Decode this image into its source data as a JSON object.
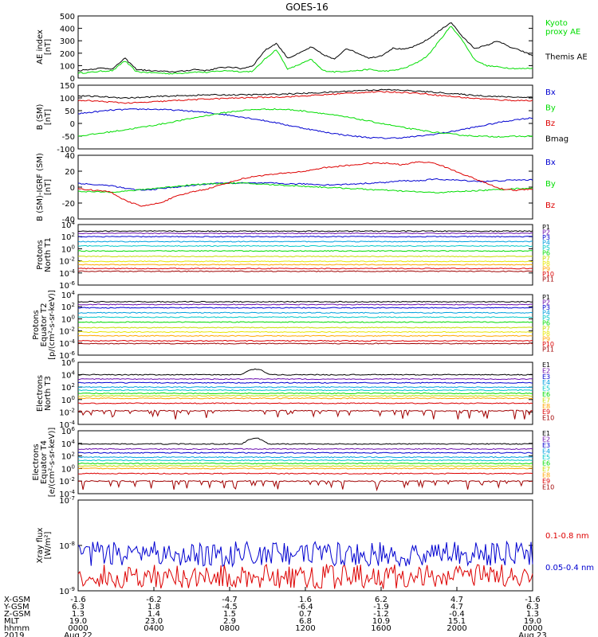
{
  "title": "GOES-16",
  "colors": {
    "black": "#000000",
    "blue": "#0000d0",
    "green": "#00dd00",
    "red": "#dd0000",
    "navy": "#1a1aa8",
    "darkred": "#a00000"
  },
  "chart_data": [
    {
      "type": "line",
      "ylabel": [
        "AE index",
        "[nT]"
      ],
      "ylim": [
        0,
        500
      ],
      "yticks": [
        "500",
        "400",
        "300",
        "200",
        "100",
        "0"
      ],
      "series": [
        {
          "name": "Kyoto proxy AE",
          "label_lines": [
            "Kyoto",
            "proxy AE"
          ],
          "color": "#00dd00",
          "values": [
            40,
            45,
            55,
            60,
            140,
            50,
            45,
            40,
            35,
            40,
            50,
            45,
            55,
            60,
            50,
            55,
            150,
            230,
            70,
            110,
            150,
            60,
            50,
            55,
            60,
            70,
            55,
            60,
            80,
            120,
            180,
            300,
            420,
            300,
            150,
            100,
            90,
            80,
            75,
            80
          ]
        },
        {
          "name": "Themis AE",
          "label_lines": [
            "Themis AE"
          ],
          "color": "#000000",
          "values": [
            60,
            70,
            80,
            75,
            160,
            70,
            60,
            55,
            50,
            55,
            70,
            60,
            80,
            90,
            75,
            100,
            220,
            280,
            160,
            200,
            250,
            190,
            150,
            240,
            200,
            160,
            180,
            240,
            230,
            260,
            310,
            380,
            450,
            330,
            240,
            260,
            300,
            250,
            220,
            180
          ]
        }
      ]
    },
    {
      "type": "line",
      "ylabel": [
        "B (SM)",
        "[nT]"
      ],
      "ylim": [
        -100,
        150
      ],
      "yticks": [
        "150",
        "100",
        "50",
        "0",
        "-50",
        "-100"
      ],
      "series": [
        {
          "name": "Bx",
          "color": "#0000d0",
          "values": [
            38,
            45,
            52,
            55,
            56,
            55,
            52,
            48,
            42,
            35,
            26,
            16,
            5,
            -8,
            -20,
            -32,
            -42,
            -50,
            -56,
            -58,
            -56,
            -50,
            -42,
            -32,
            -20,
            -8,
            5,
            15,
            22
          ]
        },
        {
          "name": "By",
          "color": "#00dd00",
          "values": [
            -50,
            -42,
            -33,
            -24,
            -14,
            -4,
            8,
            20,
            32,
            42,
            50,
            55,
            56,
            54,
            48,
            40,
            30,
            20,
            8,
            -4,
            -16,
            -26,
            -35,
            -42,
            -48,
            -51,
            -52,
            -51,
            -50
          ]
        },
        {
          "name": "Bz",
          "color": "#dd0000",
          "values": [
            90,
            88,
            84,
            80,
            82,
            86,
            90,
            93,
            96,
            98,
            100,
            102,
            103,
            105,
            108,
            112,
            116,
            120,
            123,
            124,
            122,
            118,
            112,
            106,
            100,
            96,
            92,
            90,
            90
          ]
        },
        {
          "name": "Bmag",
          "color": "#000000",
          "values": [
            108,
            106,
            103,
            100,
            102,
            106,
            108,
            110,
            112,
            112,
            112,
            113,
            114,
            116,
            118,
            121,
            124,
            128,
            131,
            132,
            130,
            126,
            122,
            117,
            112,
            108,
            105,
            103,
            103
          ]
        }
      ]
    },
    {
      "type": "line",
      "ylabel": [
        "B (SM)-IGRF (SM)",
        "[nT]"
      ],
      "ylim": [
        -40,
        40
      ],
      "yticks": [
        "40",
        "20",
        "0",
        "-20",
        "-40"
      ],
      "series": [
        {
          "name": "Bx",
          "color": "#0000d0",
          "values": [
            5,
            3,
            2,
            -2,
            -4,
            -2,
            0,
            2,
            4,
            5,
            5,
            5,
            5,
            4,
            4,
            3,
            3,
            4,
            5,
            6,
            8,
            8,
            10,
            9,
            8,
            7,
            8,
            9,
            9
          ]
        },
        {
          "name": "By",
          "color": "#00dd00",
          "values": [
            -5,
            -6,
            -6,
            -5,
            -3,
            -1,
            1,
            3,
            4,
            5,
            5,
            4,
            3,
            2,
            1,
            0,
            -1,
            -2,
            -3,
            -4,
            -5,
            -6,
            -7,
            -6,
            -5,
            -4,
            -3,
            -2,
            -1
          ]
        },
        {
          "name": "Bz",
          "color": "#dd0000",
          "values": [
            -2,
            -4,
            -6,
            -18,
            -24,
            -20,
            -12,
            -6,
            -2,
            4,
            10,
            14,
            16,
            18,
            20,
            24,
            26,
            28,
            30,
            30,
            28,
            32,
            30,
            22,
            14,
            6,
            -2,
            -4,
            -2
          ]
        }
      ]
    },
    {
      "type": "line",
      "ylabel": [
        "Protons",
        "North T1"
      ],
      "ylim": [
        -7,
        4
      ],
      "log": true,
      "yticks": [
        "10^4",
        "10^2",
        "10^0",
        "10^-2",
        "10^-4",
        "10^-6"
      ],
      "series": [
        {
          "name": "P1",
          "color": "#000000",
          "level": 2.8
        },
        {
          "name": "P2",
          "color": "#6a0dad",
          "level": 2.4
        },
        {
          "name": "P3",
          "color": "#0000d0",
          "level": 1.8
        },
        {
          "name": "P4",
          "color": "#00a0e0",
          "level": 0.9
        },
        {
          "name": "P5",
          "color": "#00c8c8",
          "level": 0.1
        },
        {
          "name": "P6",
          "color": "#00dd00",
          "level": -0.8
        },
        {
          "name": "P7",
          "color": "#c8dc00",
          "level": -1.8
        },
        {
          "name": "P8",
          "color": "#e6e600",
          "level": -2.7
        },
        {
          "name": "P9",
          "color": "#ffa500",
          "level": -3.3
        },
        {
          "name": "P10",
          "color": "#dd0000",
          "level": -4.0
        },
        {
          "name": "P11",
          "color": "#a00000",
          "level": -4.5
        }
      ]
    },
    {
      "type": "line",
      "ylabel": [
        "Protons",
        "Equator T2",
        "[p/(cm²-s-sr-keV)]"
      ],
      "ylim": [
        -7,
        4
      ],
      "log": true,
      "yticks": [
        "10^4",
        "10^2",
        "10^0",
        "10^-2",
        "10^-4",
        "10^-6"
      ],
      "series": [
        {
          "name": "P1",
          "color": "#000000",
          "level": 2.7
        },
        {
          "name": "P2",
          "color": "#6a0dad",
          "level": 2.2
        },
        {
          "name": "P3",
          "color": "#0000d0",
          "level": 1.6
        },
        {
          "name": "P4",
          "color": "#00a0e0",
          "level": 0.7
        },
        {
          "name": "P5",
          "color": "#00c8c8",
          "level": -0.1
        },
        {
          "name": "P6",
          "color": "#00dd00",
          "level": -1.0
        },
        {
          "name": "P7",
          "color": "#c8dc00",
          "level": -2.0
        },
        {
          "name": "P8",
          "color": "#e6e600",
          "level": -2.8
        },
        {
          "name": "P9",
          "color": "#ffa500",
          "level": -3.5
        },
        {
          "name": "P10",
          "color": "#dd0000",
          "level": -4.4
        },
        {
          "name": "P11",
          "color": "#a00000",
          "level": -4.9
        }
      ]
    },
    {
      "type": "line",
      "ylabel": [
        "Electrons",
        "North T3"
      ],
      "ylim": [
        -4,
        6
      ],
      "log": true,
      "yticks": [
        "10^6",
        "10^4",
        "10^2",
        "10^0",
        "10^-2",
        "10^-4"
      ],
      "series": [
        {
          "name": "E1",
          "color": "#000000",
          "level": 4.0
        },
        {
          "name": "E2",
          "color": "#6a0dad",
          "level": 3.3
        },
        {
          "name": "E3",
          "color": "#0000d0",
          "level": 2.7
        },
        {
          "name": "E4",
          "color": "#00a0e0",
          "level": 2.0
        },
        {
          "name": "E5",
          "color": "#00c8c8",
          "level": 1.5
        },
        {
          "name": "E6",
          "color": "#00dd00",
          "level": 1.0
        },
        {
          "name": "E7",
          "color": "#c8dc00",
          "level": 0.6
        },
        {
          "name": "E8",
          "color": "#ffa500",
          "level": 0.2
        },
        {
          "name": "E9",
          "color": "#dd0000",
          "level": -0.6
        },
        {
          "name": "E10",
          "color": "#a00000",
          "level": -1.8
        }
      ]
    },
    {
      "type": "line",
      "ylabel": [
        "Electrons",
        "Equator T4",
        "[e/(cm²-s-sr-keV)]"
      ],
      "ylim": [
        -4,
        6
      ],
      "log": true,
      "yticks": [
        "10^6",
        "10^4",
        "10^2",
        "10^0",
        "10^-2",
        "10^-4"
      ],
      "series": [
        {
          "name": "E1",
          "color": "#000000",
          "level": 3.9
        },
        {
          "name": "E2",
          "color": "#6a0dad",
          "level": 3.1
        },
        {
          "name": "E3",
          "color": "#0000d0",
          "level": 2.5
        },
        {
          "name": "E4",
          "color": "#00a0e0",
          "level": 1.8
        },
        {
          "name": "E5",
          "color": "#00c8c8",
          "level": 1.3
        },
        {
          "name": "E6",
          "color": "#00dd00",
          "level": 0.8
        },
        {
          "name": "E7",
          "color": "#c8dc00",
          "level": 0.4
        },
        {
          "name": "E8",
          "color": "#ffa500",
          "level": 0.0
        },
        {
          "name": "E9",
          "color": "#dd0000",
          "level": -0.8
        },
        {
          "name": "E10",
          "color": "#a00000",
          "level": -2.0
        }
      ]
    },
    {
      "type": "line",
      "ylabel": [
        "Xray flux",
        "[W/m²]"
      ],
      "ylim": [
        -9,
        -7
      ],
      "log": true,
      "yticks": [
        "10^-7",
        "10^-8",
        "10^-9"
      ],
      "series": [
        {
          "name": "0.1-0.8 nm",
          "color": "#dd0000",
          "level": -8.75
        },
        {
          "name": "0.05-0.4 nm",
          "color": "#0000d0",
          "level": -8.25
        }
      ]
    }
  ],
  "xaxis": {
    "row_labels": [
      "X-GSM",
      "Y-GSM",
      "Z-GSM",
      "MLT",
      "hhmm",
      "2019"
    ],
    "columns": [
      [
        "-1.6",
        "6.3",
        "1.3",
        "19.0",
        "0000",
        "Aug 22"
      ],
      [
        "-6.2",
        "1.8",
        "1.4",
        "23.0",
        "0400",
        ""
      ],
      [
        "-4.7",
        "-4.5",
        "1.5",
        "2.9",
        "0800",
        ""
      ],
      [
        "1.6",
        "-6.4",
        "0.7",
        "6.8",
        "1200",
        ""
      ],
      [
        "6.2",
        "-1.9",
        "-1.2",
        "10.9",
        "1600",
        ""
      ],
      [
        "4.7",
        "4.7",
        "-0.4",
        "15.1",
        "2000",
        ""
      ],
      [
        "-1.6",
        "6.3",
        "1.3",
        "19.0",
        "0000",
        "Aug 23"
      ]
    ]
  }
}
